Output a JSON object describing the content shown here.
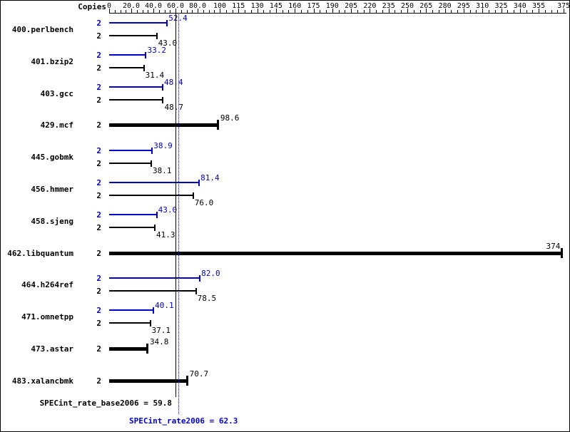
{
  "chart_data": {
    "type": "bar",
    "orientation": "horizontal",
    "title": "",
    "copies_header": "Copies",
    "axis": {
      "tick_values": [
        0,
        20,
        40,
        60,
        80,
        100,
        115,
        130,
        145,
        160,
        175,
        190,
        205,
        220,
        235,
        250,
        265,
        280,
        295,
        310,
        325,
        340,
        355,
        375
      ],
      "tick_labels": [
        "0",
        "20.0",
        "40.0",
        "60.0",
        "80.0",
        "100",
        "115",
        "130",
        "145",
        "160",
        "175",
        "190",
        "205",
        "220",
        "235",
        "250",
        "265",
        "280",
        "295",
        "310",
        "325",
        "340",
        "355",
        "375"
      ],
      "scale_note": "linear 0-100 with major step 20, then linear with major step 15 up to 375",
      "grid": false
    },
    "categories": [
      "400.perlbench",
      "401.bzip2",
      "403.gcc",
      "429.mcf",
      "445.gobmk",
      "456.hmmer",
      "458.sjeng",
      "462.libquantum",
      "464.h264ref",
      "471.omnetpp",
      "473.astar",
      "483.xalancbmk"
    ],
    "copies": [
      "2",
      "2",
      "2",
      "2",
      "2",
      "2",
      "2",
      "2",
      "2",
      "2",
      "2",
      "2"
    ],
    "base_equals_peak": [
      false,
      false,
      false,
      true,
      false,
      false,
      false,
      true,
      false,
      false,
      true,
      true
    ],
    "series": [
      {
        "name": "peak",
        "color": "#0000c8",
        "values": [
          52.4,
          33.2,
          48.4,
          98.6,
          38.9,
          81.4,
          43.0,
          374,
          82.0,
          40.1,
          34.8,
          70.7
        ]
      },
      {
        "name": "base",
        "color": "#000000",
        "values": [
          43.0,
          31.4,
          48.7,
          98.6,
          38.1,
          76.0,
          41.3,
          374,
          78.5,
          37.1,
          34.8,
          70.7
        ]
      }
    ],
    "value_labels": {
      "peak": [
        "52.4",
        "33.2",
        "48.4",
        "98.6",
        "38.9",
        "81.4",
        "43.0",
        "374",
        "82.0",
        "40.1",
        "34.8",
        "70.7"
      ],
      "base": [
        "43.0",
        "31.4",
        "48.7",
        null,
        "38.1",
        "76.0",
        "41.3",
        null,
        "78.5",
        "37.1",
        null,
        null
      ]
    },
    "reference_lines": [
      {
        "label": "SPECint_rate_base2006 = 59.8",
        "value": 59.8,
        "color": "#000000",
        "style": "solid"
      },
      {
        "label": "SPECint_rate2006 = 62.3",
        "value": 62.3,
        "color": "#0000c8",
        "style": "dotted"
      }
    ],
    "legend_position": "none"
  },
  "summary": {
    "base_text": "SPECint_rate_base2006 = 59.8",
    "peak_text": "SPECint_rate2006 = 62.3"
  },
  "colors": {
    "peak_blue": "#0000c8",
    "black": "#000000",
    "background": "#ffffff"
  }
}
